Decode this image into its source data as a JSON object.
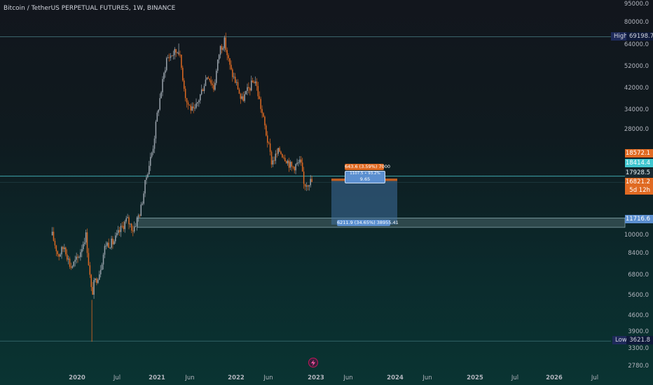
{
  "header": {
    "title": "Bitcoin / TetherUS PERPETUAL FUTURES, 1W, BINANCE"
  },
  "colors": {
    "up": "#9aa3ac",
    "down": "#e06a22",
    "cyan": "#4fd3dc",
    "stop": "#5b8fd0"
  },
  "chart_data": {
    "type": "candlestick",
    "title": "Bitcoin / TetherUS PERPETUAL FUTURES, 1W, BINANCE",
    "y_scale": "log",
    "ylim": [
      2600,
      96000
    ],
    "y_ticks": [
      "95000.0",
      "80000.0",
      "64000.0",
      "52000.0",
      "42000.0",
      "34000.0",
      "28000.0",
      "10000.0",
      "8400.0",
      "6800.0",
      "5600.0",
      "4600.0",
      "3900.0",
      "3300.0",
      "2780.0"
    ],
    "x_ticks": [
      "2020",
      "Jul",
      "2021",
      "Jun",
      "2022",
      "Jun",
      "2023",
      "Jun",
      "2024",
      "Jun",
      "2025",
      "Jul",
      "2026",
      "Jul"
    ],
    "series_close": [
      [
        "2019-09-09",
        10100
      ],
      [
        "2019-10-07",
        8300
      ],
      [
        "2019-11-04",
        9100
      ],
      [
        "2019-12-02",
        7400
      ],
      [
        "2020-01-06",
        8100
      ],
      [
        "2020-02-10",
        10200
      ],
      [
        "2020-03-09",
        5600
      ],
      [
        "2020-03-16",
        6200
      ],
      [
        "2020-04-13",
        7100
      ],
      [
        "2020-05-11",
        9300
      ],
      [
        "2020-06-15",
        9400
      ],
      [
        "2020-07-27",
        11000
      ],
      [
        "2020-08-17",
        11800
      ],
      [
        "2020-09-14",
        10700
      ],
      [
        "2020-10-19",
        12900
      ],
      [
        "2020-11-16",
        18200
      ],
      [
        "2020-12-14",
        23500
      ],
      [
        "2021-01-04",
        33000
      ],
      [
        "2021-02-15",
        56000
      ],
      [
        "2021-03-08",
        58000
      ],
      [
        "2021-04-12",
        61000
      ],
      [
        "2021-05-17",
        37000
      ],
      [
        "2021-06-21",
        33000
      ],
      [
        "2021-07-26",
        41000
      ],
      [
        "2021-08-23",
        48500
      ],
      [
        "2021-09-20",
        42000
      ],
      [
        "2021-10-18",
        62000
      ],
      [
        "2021-11-08",
        66000
      ],
      [
        "2021-12-06",
        50000
      ],
      [
        "2022-01-10",
        42000
      ],
      [
        "2022-01-24",
        37000
      ],
      [
        "2022-03-28",
        46000
      ],
      [
        "2022-05-09",
        30000
      ],
      [
        "2022-06-13",
        20500
      ],
      [
        "2022-07-18",
        23000
      ],
      [
        "2022-08-15",
        21500
      ],
      [
        "2022-09-12",
        19500
      ],
      [
        "2022-10-24",
        20500
      ],
      [
        "2022-11-07",
        16500
      ],
      [
        "2022-12-05",
        17100
      ],
      [
        "2022-12-19",
        16900
      ]
    ],
    "series_up_peaks": [
      [
        "2021-04-12",
        64800
      ],
      [
        "2021-11-08",
        69000
      ]
    ],
    "series_lows": [
      [
        "2020-03-09",
        3600
      ]
    ],
    "annotations": {
      "high": {
        "label": "High",
        "value": "69198.7"
      },
      "low": {
        "label": "Low",
        "value": "3621.8"
      },
      "horizontal_line": 17900,
      "price_labels": [
        "18572.1",
        "18414.4",
        "17928.5",
        "16821.2",
        "5d 12h",
        "11716.6"
      ],
      "short_position": {
        "entry": 17100,
        "stop": 17500,
        "target": 11200,
        "target_label": "643.6 (3.59%) 7000",
        "info_label_1": "1107.5 • 93.2%",
        "info_label_2": "9.65",
        "profit_label": "6211.9 (34.65%) 38955.41"
      }
    }
  }
}
